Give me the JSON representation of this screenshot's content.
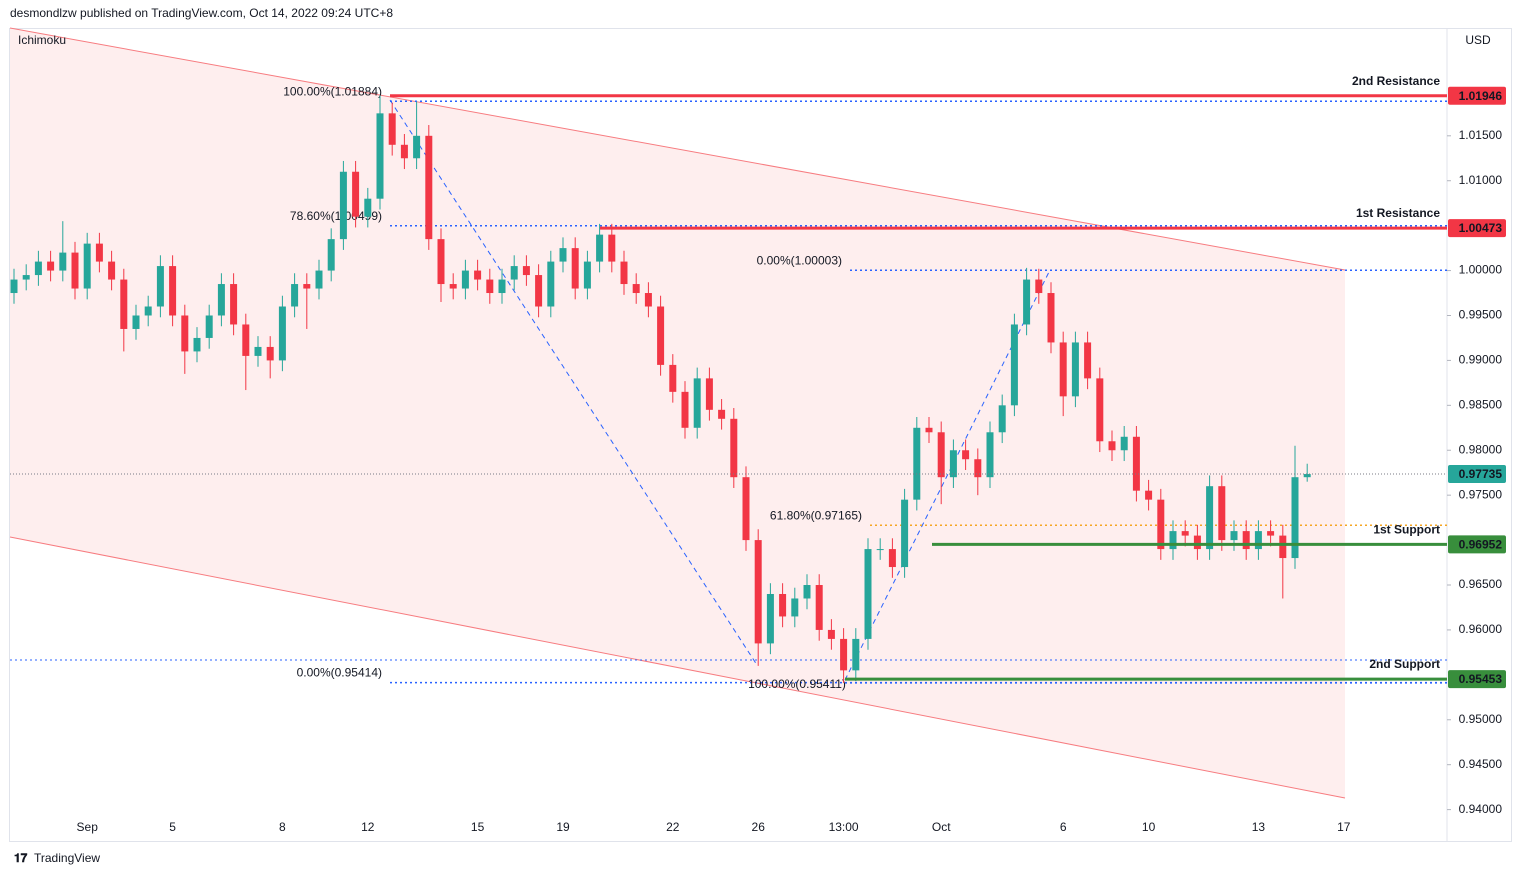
{
  "header": {
    "publisher": "desmondlzw published on TradingView.com, Oct 14, 2022 09:24 UTC+8",
    "indicator": "Ichimoku",
    "currency": "USD",
    "brand": "TradingView"
  },
  "chart_data": {
    "type": "candlestick",
    "up_color": "#26a69a",
    "down_color": "#f23645",
    "categories": [
      null,
      null,
      null,
      null,
      null,
      null,
      "Sep",
      null,
      null,
      null,
      null,
      null,
      null,
      "5",
      null,
      null,
      null,
      null,
      null,
      null,
      null,
      null,
      "8",
      null,
      null,
      null,
      null,
      null,
      null,
      "12",
      null,
      null,
      null,
      null,
      null,
      null,
      null,
      null,
      "15",
      null,
      null,
      null,
      null,
      null,
      null,
      "19",
      null,
      null,
      null,
      null,
      null,
      null,
      null,
      null,
      "22",
      null,
      null,
      null,
      null,
      null,
      null,
      "26",
      null,
      null,
      null,
      null,
      null,
      null,
      "13:00",
      null,
      null,
      null,
      null,
      null,
      null,
      null,
      "Oct",
      null,
      null,
      null,
      null,
      null,
      null,
      null,
      null,
      null,
      "6",
      null,
      null,
      null,
      null,
      null,
      null,
      "10",
      null,
      null,
      null,
      null,
      null,
      null,
      null,
      null,
      "13",
      null,
      null,
      null,
      null,
      null,
      null,
      "17"
    ],
    "open": [
      0.9975,
      0.999,
      0.9995,
      1.001,
      1.0,
      1.002,
      0.998,
      1.003,
      1.001,
      0.999,
      0.9935,
      0.995,
      0.996,
      1.0005,
      0.995,
      0.991,
      0.9925,
      0.995,
      0.9985,
      0.994,
      0.9905,
      0.9915,
      0.99,
      0.996,
      0.9985,
      0.998,
      1.0,
      1.0035,
      1.011,
      1.006,
      1.008,
      1.0175,
      1.014,
      1.0125,
      1.015,
      1.0035,
      0.9985,
      0.998,
      1.0,
      0.999,
      0.9975,
      0.999,
      1.0005,
      0.9995,
      0.996,
      1.001,
      1.0025,
      0.998,
      1.001,
      1.004,
      1.001,
      0.9985,
      0.9975,
      0.996,
      0.9895,
      0.9865,
      0.9825,
      0.988,
      0.9845,
      0.9835,
      0.977,
      0.97,
      0.9585,
      0.964,
      0.9615,
      0.9635,
      0.965,
      0.96,
      0.959,
      0.9555,
      0.959,
      0.969,
      0.969,
      0.967,
      0.9745,
      0.9825,
      0.982,
      0.977,
      0.98,
      0.979,
      0.977,
      0.982,
      0.985,
      0.994,
      0.999,
      0.9975,
      0.992,
      0.986,
      0.992,
      0.988,
      0.981,
      0.98,
      0.9815,
      0.9755,
      0.9745,
      0.969,
      0.971,
      0.9705,
      0.969,
      0.976,
      0.97,
      0.971,
      0.969,
      0.971,
      0.9705,
      0.968,
      0.977,
      null,
      null,
      null
    ],
    "high": [
      1.0002,
      1.0007,
      1.0022,
      1.0022,
      1.0055,
      1.0032,
      1.0042,
      1.0042,
      1.0022,
      1.0002,
      0.9962,
      0.9972,
      1.0017,
      1.0017,
      0.9962,
      0.9937,
      0.9962,
      0.9997,
      0.9997,
      0.9952,
      0.9927,
      0.9927,
      0.9972,
      0.9997,
      0.9997,
      1.0012,
      1.0047,
      1.0122,
      1.0122,
      1.0092,
      1.0195,
      1.0187,
      1.0152,
      1.0188,
      1.0162,
      1.0047,
      0.9997,
      1.0012,
      1.0012,
      1.0002,
      1.0002,
      1.0017,
      1.0017,
      1.0007,
      1.0022,
      1.0037,
      1.0037,
      1.0022,
      1.0052,
      1.0052,
      1.0022,
      0.9997,
      0.9987,
      0.9972,
      0.9907,
      0.9877,
      0.9892,
      0.9892,
      0.9857,
      0.9847,
      0.9782,
      0.9712,
      0.9652,
      0.9652,
      0.9647,
      0.9662,
      0.9662,
      0.9612,
      0.9602,
      0.9602,
      0.9702,
      0.9702,
      0.9702,
      0.9757,
      0.9837,
      0.9837,
      0.9832,
      0.9812,
      0.9812,
      0.9802,
      0.9832,
      0.9862,
      0.9952,
      1.0003,
      1.0002,
      0.9987,
      0.9932,
      0.9932,
      0.9932,
      0.9892,
      0.9822,
      0.9827,
      0.9827,
      0.9767,
      0.9757,
      0.9722,
      0.9722,
      0.9717,
      0.9772,
      0.9772,
      0.9722,
      0.9722,
      0.9722,
      0.9722,
      0.9717,
      0.9805,
      0.9785,
      null,
      null,
      null
    ],
    "low": [
      0.9963,
      0.9978,
      0.9983,
      0.9988,
      0.9988,
      0.9968,
      0.9968,
      0.9998,
      0.9978,
      0.991,
      0.9923,
      0.9938,
      0.9948,
      0.9938,
      0.9885,
      0.9898,
      0.9913,
      0.9938,
      0.9928,
      0.9867,
      0.9893,
      0.988,
      0.9888,
      0.9948,
      0.9935,
      0.9968,
      0.9988,
      1.0023,
      1.0048,
      1.0048,
      1.0068,
      1.0128,
      1.0113,
      1.0113,
      1.0023,
      0.9965,
      0.9968,
      0.9968,
      0.9978,
      0.9963,
      0.9963,
      0.9978,
      0.9983,
      0.9948,
      0.9948,
      0.9998,
      0.9968,
      0.9968,
      0.9998,
      0.9998,
      0.9973,
      0.9963,
      0.9948,
      0.9883,
      0.9853,
      0.9813,
      0.9813,
      0.9833,
      0.9823,
      0.9758,
      0.9688,
      0.956,
      0.9573,
      0.9603,
      0.9603,
      0.9623,
      0.9588,
      0.9578,
      0.9541,
      0.9543,
      0.9578,
      0.9678,
      0.9658,
      0.9658,
      0.9733,
      0.9808,
      0.974,
      0.9758,
      0.9778,
      0.975,
      0.9758,
      0.9808,
      0.9838,
      0.9928,
      0.9963,
      0.9908,
      0.9838,
      0.9848,
      0.9868,
      0.9798,
      0.9788,
      0.9788,
      0.9743,
      0.9733,
      0.9678,
      0.9678,
      0.9693,
      0.9678,
      0.9678,
      0.9688,
      0.9688,
      0.9678,
      0.9678,
      0.9693,
      0.9635,
      0.9668,
      0.9765,
      null,
      null,
      null
    ],
    "close": [
      0.999,
      0.9995,
      1.001,
      1.0,
      1.002,
      0.998,
      1.003,
      1.001,
      0.999,
      0.9935,
      0.995,
      0.996,
      1.0005,
      0.995,
      0.991,
      0.9925,
      0.995,
      0.9985,
      0.994,
      0.9905,
      0.9915,
      0.99,
      0.996,
      0.9985,
      0.998,
      1.0,
      1.0035,
      1.011,
      1.006,
      1.008,
      1.0175,
      1.014,
      1.0125,
      1.015,
      1.0035,
      0.9985,
      0.998,
      1.0,
      0.999,
      0.9975,
      0.999,
      1.0005,
      0.9995,
      0.996,
      1.001,
      1.0025,
      0.998,
      1.001,
      1.004,
      1.001,
      0.9985,
      0.9975,
      0.996,
      0.9895,
      0.9865,
      0.9825,
      0.988,
      0.9845,
      0.9835,
      0.977,
      0.97,
      0.9585,
      0.964,
      0.9615,
      0.9635,
      0.965,
      0.96,
      0.959,
      0.9555,
      0.959,
      0.969,
      0.969,
      0.967,
      0.9745,
      0.9825,
      0.982,
      0.977,
      0.98,
      0.979,
      0.977,
      0.982,
      0.985,
      0.994,
      0.999,
      0.9975,
      0.992,
      0.986,
      0.992,
      0.988,
      0.981,
      0.98,
      0.9815,
      0.9755,
      0.9745,
      0.969,
      0.971,
      0.9705,
      0.969,
      0.976,
      0.97,
      0.971,
      0.969,
      0.971,
      0.9705,
      0.968,
      0.977,
      0.97735,
      null,
      null,
      null
    ],
    "ylim": [
      0.9394,
      1.027
    ],
    "yticks": [
      {
        "value": 0.94,
        "label": "0.94000"
      },
      {
        "value": 0.945,
        "label": "0.94500"
      },
      {
        "value": 0.95,
        "label": "0.95000"
      },
      {
        "value": 0.96,
        "label": "0.96000"
      },
      {
        "value": 0.965,
        "label": "0.96500"
      },
      {
        "value": 0.975,
        "label": "0.97500"
      },
      {
        "value": 0.98,
        "label": "0.98000"
      },
      {
        "value": 0.985,
        "label": "0.98500"
      },
      {
        "value": 0.99,
        "label": "0.99000"
      },
      {
        "value": 0.995,
        "label": "0.99500"
      },
      {
        "value": 1,
        "label": "1.00000"
      },
      {
        "value": 1.01,
        "label": "1.01000"
      },
      {
        "value": 1.015,
        "label": "1.01500"
      }
    ],
    "levels": [
      {
        "name": "2nd Resistance",
        "value": 1.01946,
        "color": "#f23645"
      },
      {
        "name": "1st Resistance",
        "value": 1.00473,
        "color": "#f23645"
      },
      {
        "name": "1st Support",
        "value": 0.96952,
        "color": "#388e3c"
      },
      {
        "name": "2nd Support",
        "value": 0.95453,
        "color": "#388e3c"
      }
    ],
    "last_price": {
      "value": 0.97735,
      "color": "#26a69a"
    },
    "fib_levels": [
      {
        "label": "100.00%(1.01884)",
        "value": 1.01884,
        "color": "#2962ff"
      },
      {
        "label": "78.60%(1.00499)",
        "value": 1.00499,
        "color": "#2962ff"
      },
      {
        "label": "0.00%(1.00003)",
        "value": 1.00003,
        "color": "#2962ff"
      },
      {
        "label": "61.80%(0.97165)",
        "value": 0.97165,
        "color": "#f5a623"
      },
      {
        "label": "0.00%(0.95414)",
        "value": 0.95414,
        "color": "#2962ff"
      },
      {
        "label": "100.00%(0.95411)",
        "value": 0.95411,
        "color": "#2962ff"
      }
    ]
  }
}
